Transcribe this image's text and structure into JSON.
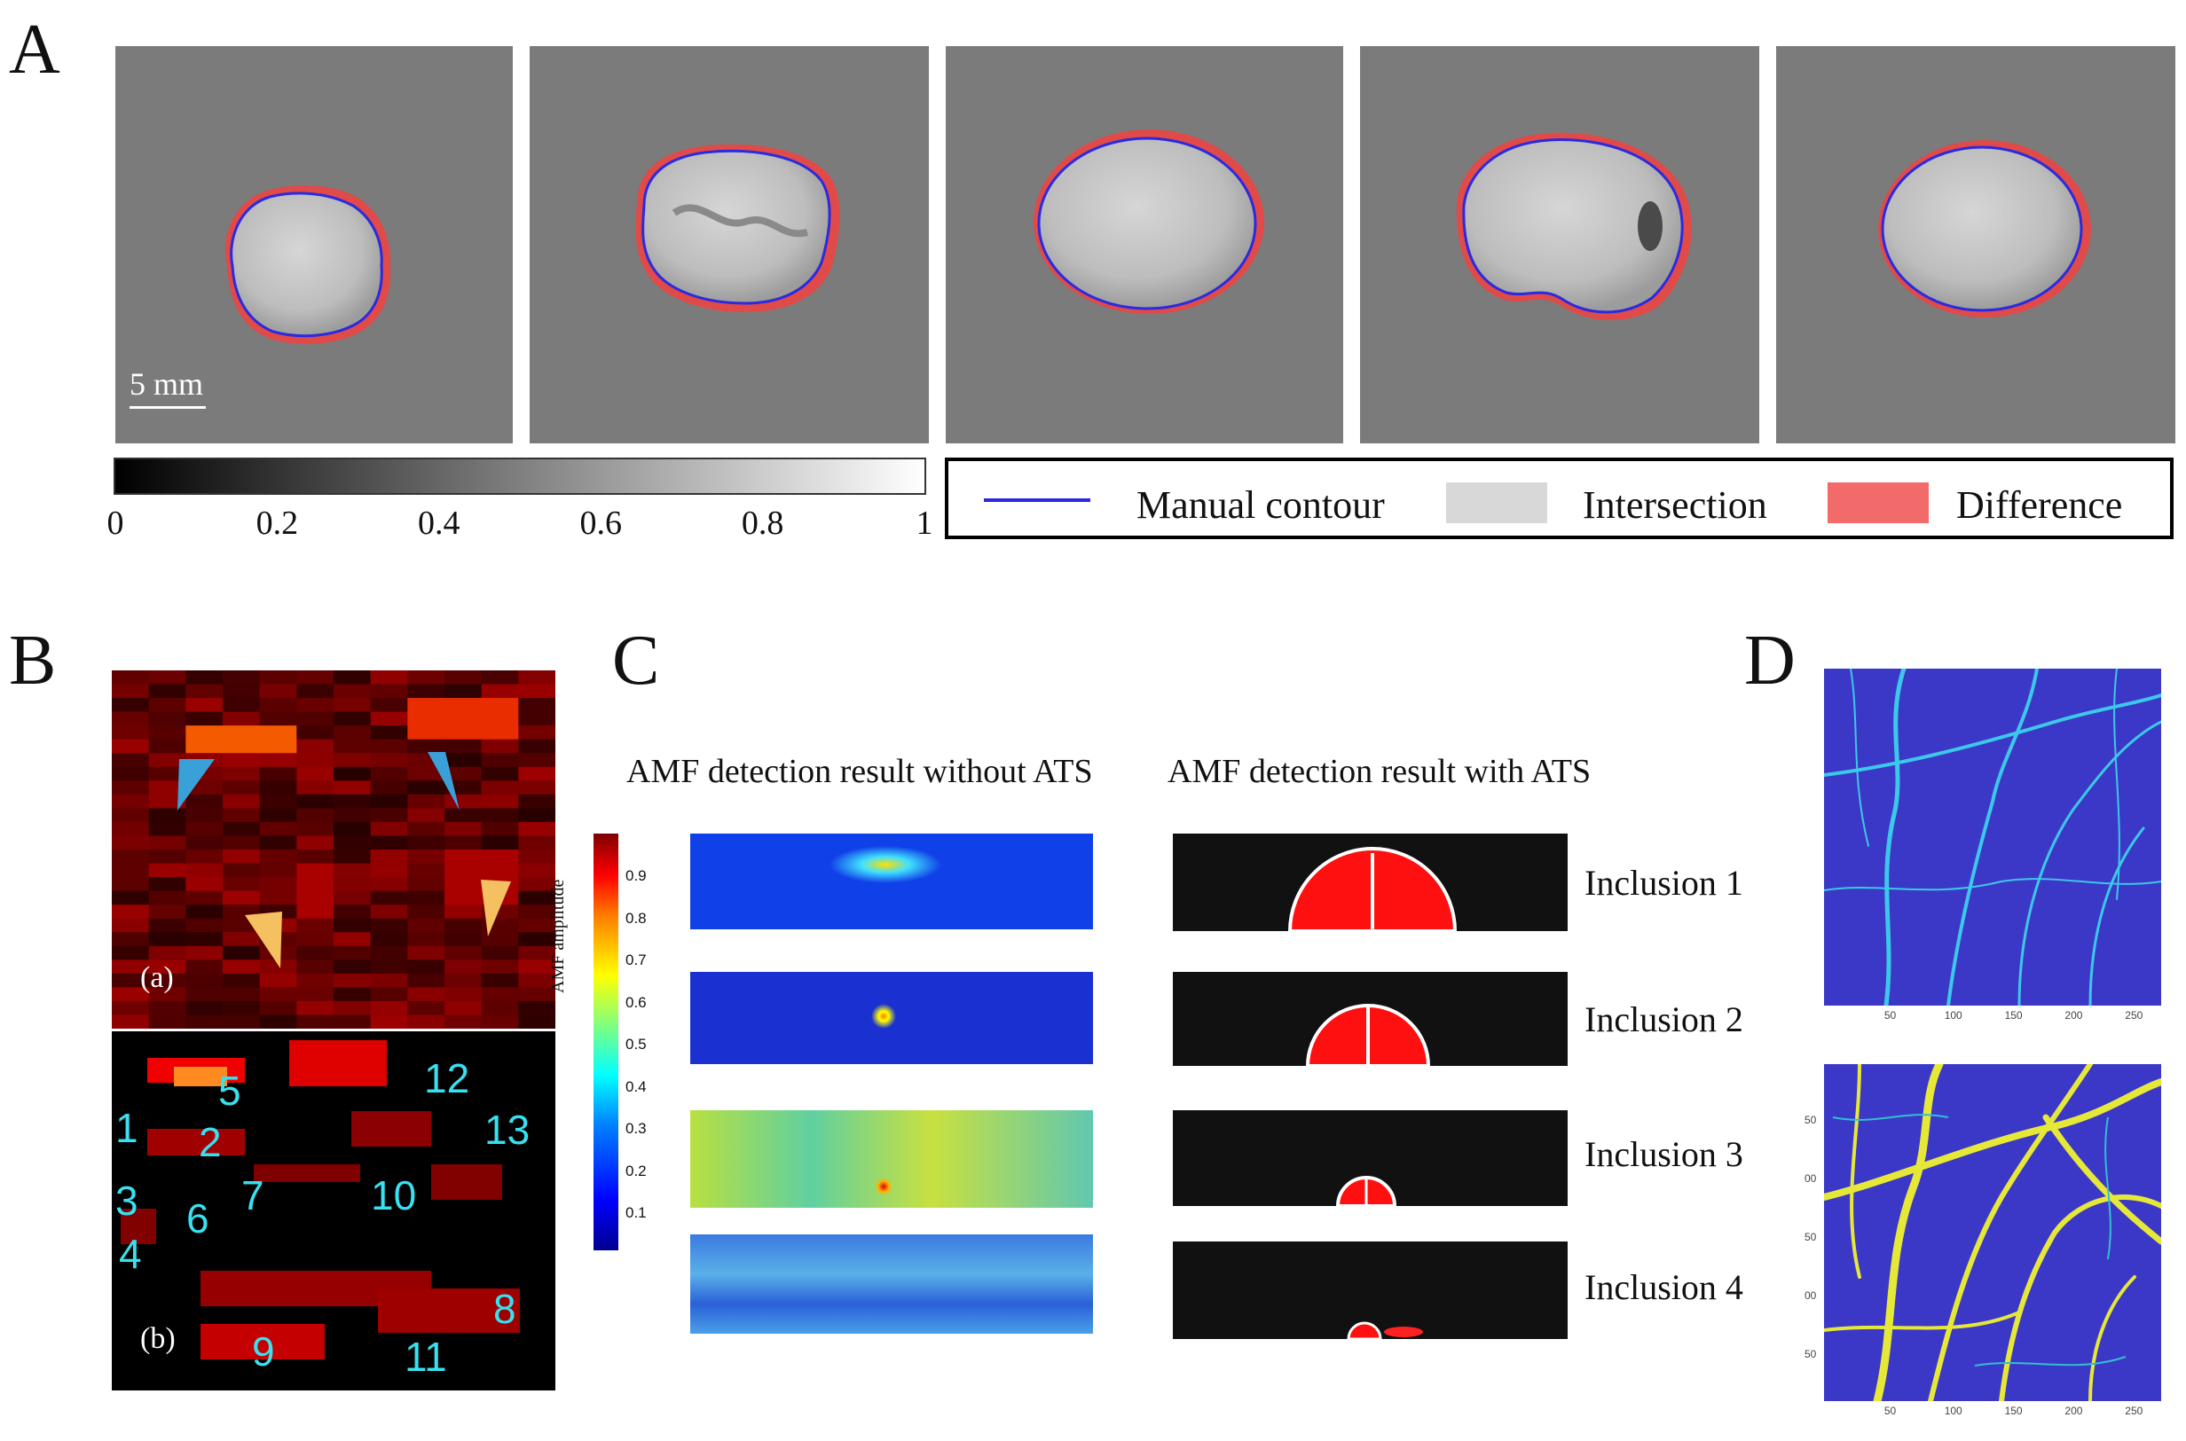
{
  "panelA": {
    "letter": "A",
    "scalebar_label": "5 mm",
    "colorbar_ticks": [
      "0",
      "0.2",
      "0.4",
      "0.6",
      "0.8",
      "1"
    ],
    "legend": {
      "manual_contour": "Manual contour",
      "intersection": "Intersection",
      "difference": "Difference"
    },
    "colors": {
      "contour": "#2a2ae0",
      "difference": "#f04040",
      "intersection": "#d8d8d8"
    }
  },
  "panelB": {
    "letter": "B",
    "sub_a": "(a)",
    "sub_b": "(b)",
    "numbers": [
      "1",
      "2",
      "3",
      "4",
      "5",
      "6",
      "7",
      "8",
      "9",
      "10",
      "11",
      "12",
      "13"
    ]
  },
  "panelC": {
    "letter": "C",
    "caption_left": "AMF detection result without ATS",
    "caption_right": "AMF detection result with ATS",
    "colorbar_title": "AMF amplitude",
    "colorbar_ticks": [
      "0.9",
      "0.8",
      "0.7",
      "0.6",
      "0.5",
      "0.4",
      "0.3",
      "0.2",
      "0.1"
    ],
    "inclusions": [
      "Inclusion 1",
      "Inclusion 2",
      "Inclusion 3",
      "Inclusion 4"
    ]
  },
  "panelD": {
    "letter": "D",
    "top_x_ticks": [
      "50",
      "100",
      "150",
      "200",
      "250"
    ],
    "bottom_x_ticks": [
      "50",
      "100",
      "150",
      "200",
      "250"
    ],
    "bottom_y_ticks": [
      "50",
      "00",
      "50",
      "00",
      "50"
    ]
  }
}
